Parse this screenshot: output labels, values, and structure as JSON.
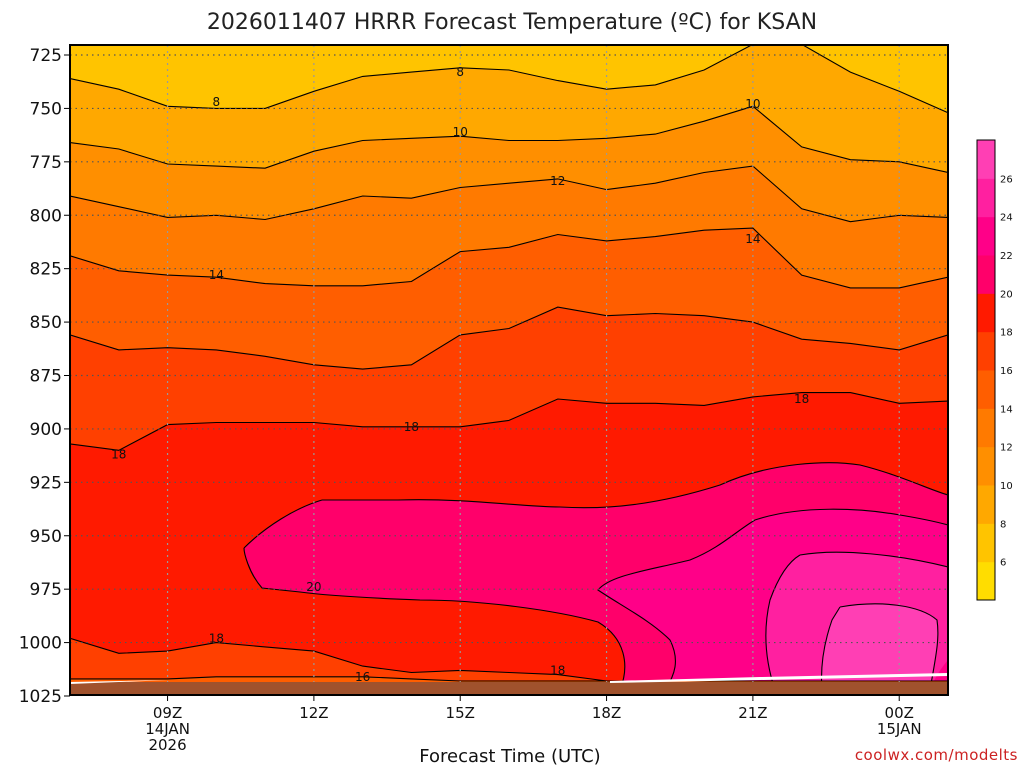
{
  "colors": {
    "band_4_6": "#ffdd00",
    "band_6_8": "#ffc400",
    "band_8_10": "#ffa800",
    "band_10_12": "#ff8f00",
    "band_12_14": "#ff7a00",
    "band_14_16": "#ff5e00",
    "band_16_18": "#ff4000",
    "band_18_20": "#ff1a00",
    "band_20_22": "#ff006a",
    "band_22_24": "#ff0088",
    "band_24_26": "#ff20a0",
    "band_26_28": "#ff3fb4",
    "ground": "#a0522d",
    "contour": "#000000",
    "grid": "#999999",
    "credit": "#cc2222"
  },
  "chart_data": {
    "type": "heatmap",
    "title": "2026011407 HRRR Forecast Temperature (ºC) for KSAN",
    "xlabel": "Forecast Time (UTC)",
    "ylabel": "",
    "y_axis": {
      "unit": "hPa",
      "ticks": [
        "725",
        "750",
        "775",
        "800",
        "825",
        "850",
        "875",
        "900",
        "925",
        "950",
        "975",
        "1000",
        "1025"
      ],
      "range": [
        725,
        1025
      ],
      "inverted": true
    },
    "x_axis": {
      "range_hours_since_00z_14jan": [
        7,
        25
      ],
      "ticks": [
        {
          "hour": 9,
          "line1": "09Z",
          "line2": "14JAN",
          "line3": "2026"
        },
        {
          "hour": 12,
          "line1": "12Z",
          "line2": "",
          "line3": ""
        },
        {
          "hour": 15,
          "line1": "15Z",
          "line2": "",
          "line3": ""
        },
        {
          "hour": 18,
          "line1": "18Z",
          "line2": "",
          "line3": ""
        },
        {
          "hour": 21,
          "line1": "21Z",
          "line2": "",
          "line3": ""
        },
        {
          "hour": 24,
          "line1": "00Z",
          "line2": "15JAN",
          "line3": ""
        }
      ]
    },
    "grid": true,
    "colorbar": {
      "min": 4,
      "max": 28,
      "step": 2,
      "labels": [
        "6",
        "8",
        "10",
        "12",
        "14",
        "16",
        "18",
        "20",
        "22",
        "24",
        "26"
      ]
    },
    "hours": [
      7,
      8,
      9,
      10,
      11,
      12,
      13,
      14,
      15,
      16,
      17,
      18,
      19,
      20,
      21,
      22,
      23,
      24,
      25
    ],
    "isotherms": [
      {
        "value": 8,
        "pressures": [
          736,
          741,
          749,
          750,
          750,
          742,
          735,
          733,
          731,
          732,
          737,
          741,
          739,
          732,
          720,
          720,
          733,
          742,
          752
        ]
      },
      {
        "value": 10,
        "pressures": [
          766,
          769,
          776,
          777,
          778,
          770,
          765,
          764,
          763,
          765,
          765,
          764,
          762,
          756,
          749,
          768,
          774,
          775,
          780
        ]
      },
      {
        "value": 12,
        "pressures": [
          791,
          796,
          801,
          800,
          802,
          797,
          791,
          792,
          787,
          785,
          783,
          788,
          785,
          780,
          777,
          797,
          803,
          800,
          801
        ]
      },
      {
        "value": 14,
        "pressures": [
          819,
          826,
          828,
          829,
          832,
          833,
          833,
          831,
          817,
          815,
          809,
          812,
          810,
          807,
          806,
          828,
          834,
          834,
          829
        ]
      },
      {
        "value": 16,
        "pressures": [
          856,
          863,
          862,
          863,
          866,
          870,
          872,
          870,
          856,
          853,
          843,
          847,
          846,
          847,
          850,
          858,
          860,
          863,
          856
        ]
      },
      {
        "value": 18,
        "pressures": [
          907,
          910,
          898,
          897,
          897,
          897,
          899,
          899,
          899,
          896,
          886,
          888,
          888,
          889,
          885,
          883,
          883,
          888,
          887
        ]
      },
      {
        "value": 18,
        "pressures": [
          998,
          1005,
          1004,
          1000,
          1002,
          1004,
          1011,
          1014,
          1013,
          1014,
          1015,
          1018,
          1018,
          1018,
          1018,
          1018,
          1018,
          1018,
          1018
        ]
      },
      {
        "value": 16,
        "pressures": [
          1017,
          1017,
          1017,
          1016,
          1016,
          1016,
          1016,
          1017,
          1018,
          1018,
          1018,
          1018,
          1018,
          1018,
          1018,
          1018,
          1018,
          1018,
          1018
        ]
      }
    ],
    "contour_labels": [
      {
        "text": "8",
        "hour": 10.0,
        "p": 747
      },
      {
        "text": "8",
        "hour": 15.0,
        "p": 733
      },
      {
        "text": "10",
        "hour": 15.0,
        "p": 761
      },
      {
        "text": "10",
        "hour": 21.0,
        "p": 748
      },
      {
        "text": "12",
        "hour": 17.0,
        "p": 784
      },
      {
        "text": "14",
        "hour": 10.0,
        "p": 828
      },
      {
        "text": "14",
        "hour": 21.0,
        "p": 811
      },
      {
        "text": "18",
        "hour": 8.0,
        "p": 912
      },
      {
        "text": "18",
        "hour": 14.0,
        "p": 899
      },
      {
        "text": "18",
        "hour": 22.0,
        "p": 886
      },
      {
        "text": "20",
        "hour": 12.0,
        "p": 974
      },
      {
        "text": "18",
        "hour": 10.0,
        "p": 998
      },
      {
        "text": "18",
        "hour": 17.0,
        "p": 1013
      },
      {
        "text": "16",
        "hour": 13.0,
        "p": 1016
      }
    ]
  },
  "credit": "coolwx.com/modelts"
}
